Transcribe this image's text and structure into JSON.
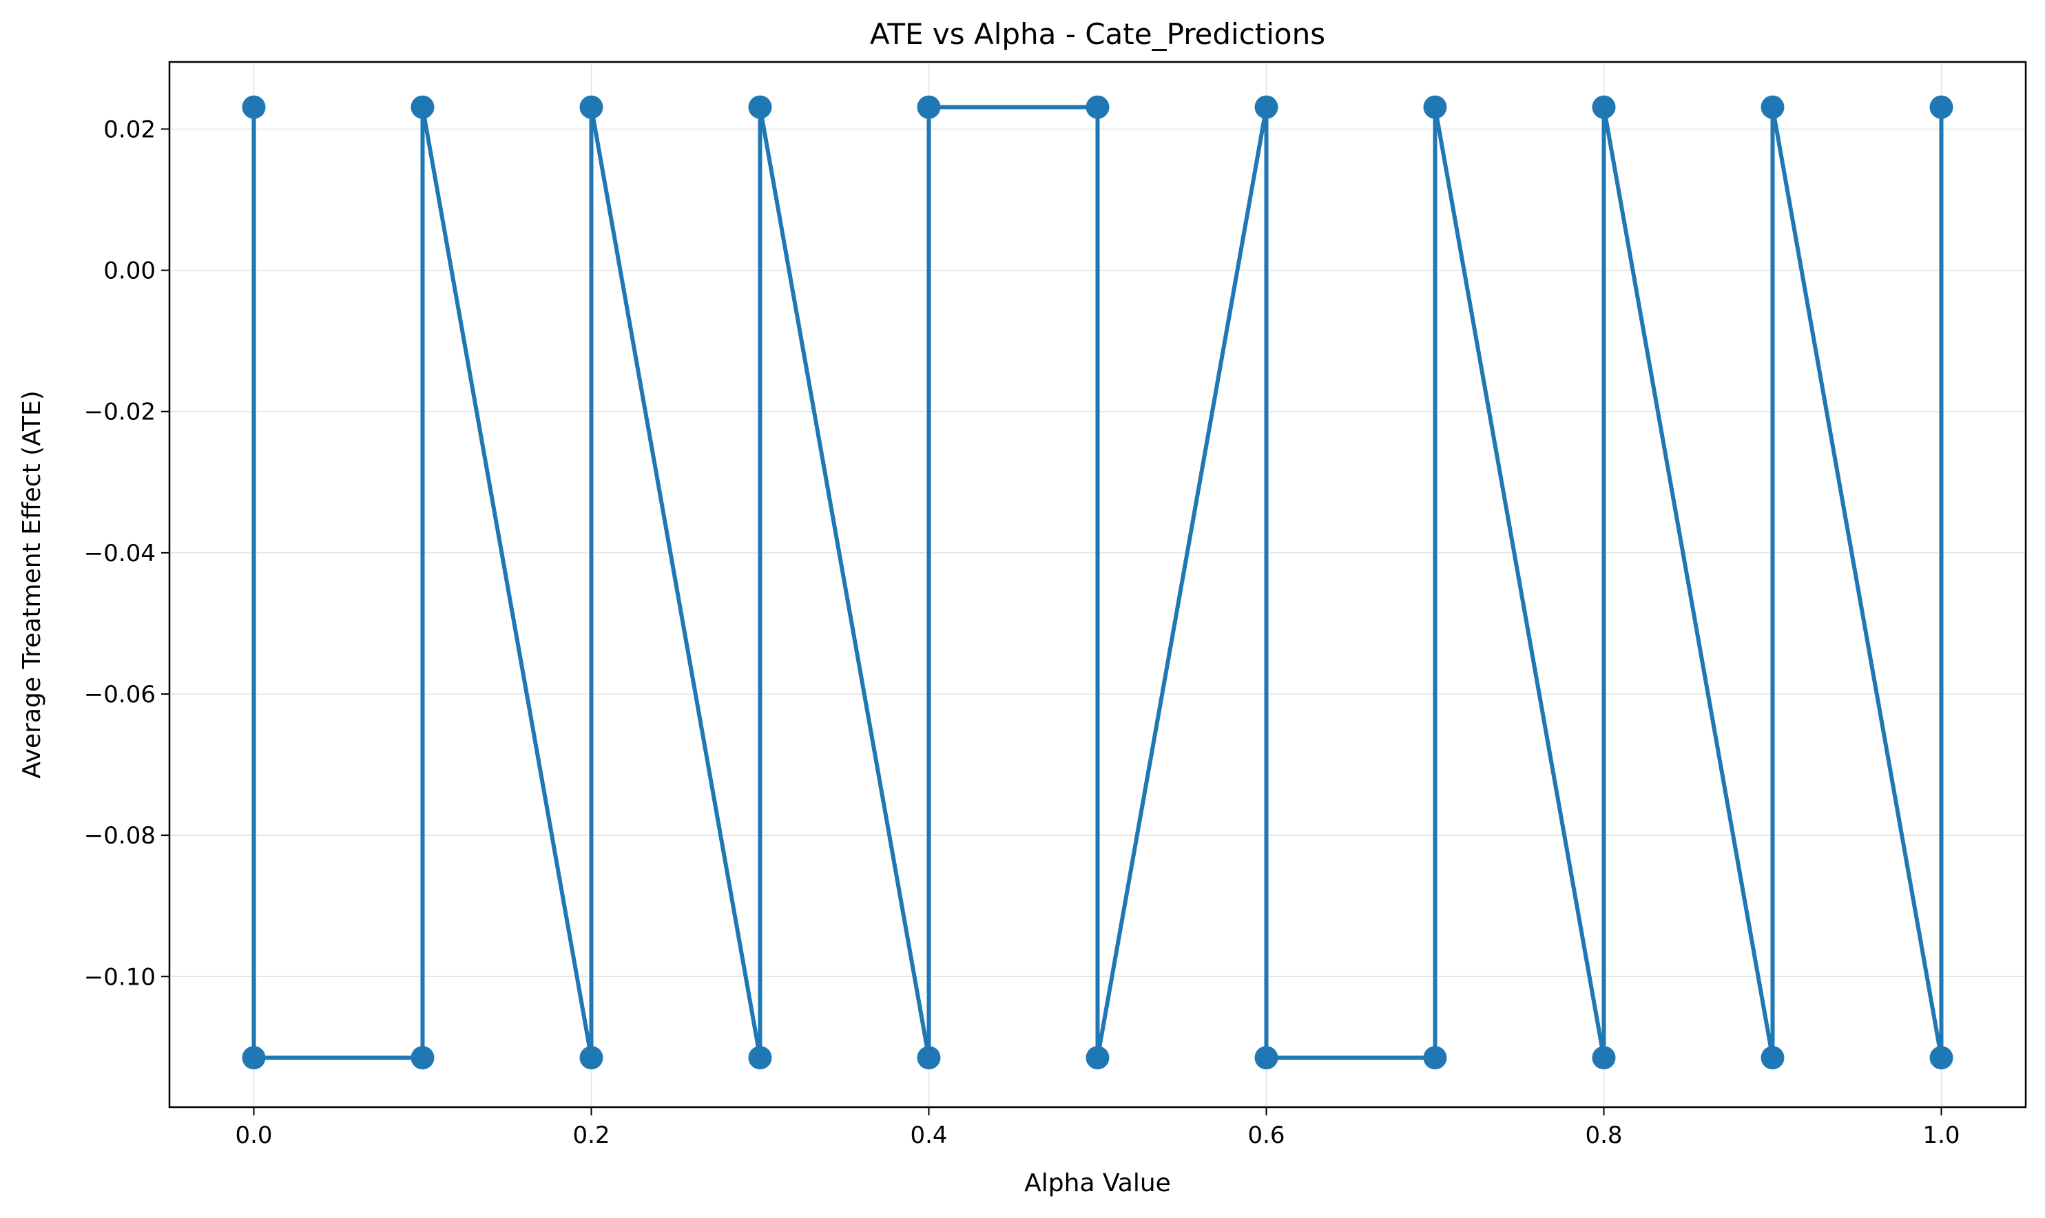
{
  "chart_data": {
    "type": "line",
    "title": "ATE vs Alpha - Cate_Predictions",
    "xlabel": "Alpha Value",
    "ylabel": "Average Treatment Effect (ATE)",
    "xlim": [
      -0.05,
      1.05
    ],
    "ylim": [
      -0.1185,
      0.0295
    ],
    "xticks": [
      0.0,
      0.2,
      0.4,
      0.6,
      0.8,
      1.0
    ],
    "xtick_labels": [
      "0.0",
      "0.2",
      "0.4",
      "0.6",
      "0.8",
      "1.0"
    ],
    "yticks": [
      0.02,
      0.0,
      -0.02,
      -0.04,
      -0.06,
      -0.08,
      -0.1
    ],
    "ytick_labels": [
      "0.02",
      "0.00",
      "−0.02",
      "−0.04",
      "−0.06",
      "−0.08",
      "−0.10"
    ],
    "grid": true,
    "series": [
      {
        "color": "#1f77b4",
        "marker": "circle",
        "x": [
          0.0,
          0.0,
          0.1,
          0.1,
          0.2,
          0.2,
          0.3,
          0.3,
          0.4,
          0.4,
          0.5,
          0.5,
          0.6,
          0.6,
          0.7,
          0.7,
          0.8,
          0.8,
          0.9,
          0.9,
          1.0,
          1.0
        ],
        "y": [
          0.0231,
          -0.1115,
          -0.1115,
          0.0231,
          -0.1115,
          0.0231,
          -0.1115,
          0.0231,
          -0.1115,
          0.0231,
          0.0231,
          -0.1115,
          0.0231,
          -0.1115,
          -0.1115,
          0.0231,
          -0.1115,
          0.0231,
          -0.1115,
          0.0231,
          -0.1115,
          0.0231
        ]
      }
    ]
  }
}
